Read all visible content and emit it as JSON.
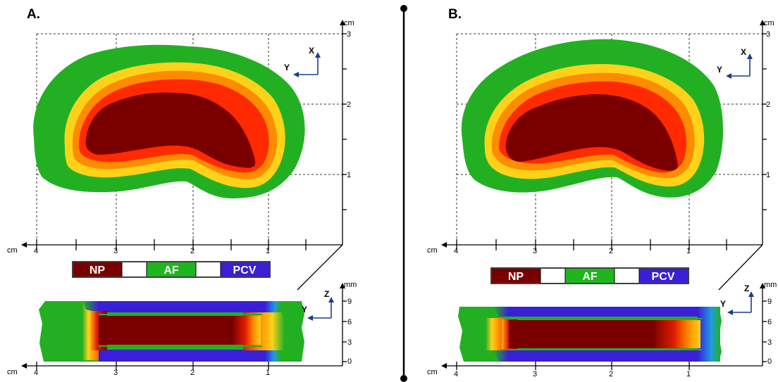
{
  "panels": [
    {
      "letter": "A.",
      "top_ticks_x": [
        "4",
        "3",
        "2",
        "1"
      ],
      "top_ticks_y": [
        "3",
        "2",
        "1"
      ],
      "bottom_ticks_x": [
        "4",
        "3",
        "2",
        "1"
      ],
      "bottom_ticks_y": [
        "9",
        "6",
        "3",
        "0"
      ],
      "unit_cm_axis": "cm",
      "unit_cm_vertical": "cm",
      "unit_mm": "mm",
      "top_axes": {
        "horizontal": "Y",
        "vertical": "X"
      },
      "bottom_axes": {
        "horizontal": "Y",
        "vertical": "Z"
      }
    },
    {
      "letter": "B.",
      "top_ticks_x": [
        "4",
        "3",
        "2",
        "1"
      ],
      "top_ticks_y": [
        "3",
        "2",
        "1"
      ],
      "bottom_ticks_x": [
        "4",
        "3",
        "2",
        "1"
      ],
      "bottom_ticks_y": [
        "9",
        "6",
        "3",
        "0"
      ],
      "unit_cm_axis": "cm",
      "unit_cm_vertical": "cm",
      "unit_mm": "mm",
      "top_axes": {
        "horizontal": "Y",
        "vertical": "X"
      },
      "bottom_axes": {
        "horizontal": "Y",
        "vertical": "Z"
      }
    }
  ],
  "legend": [
    {
      "label": "NP",
      "color": "#7a0000"
    },
    {
      "label": "",
      "color": "#ffffff"
    },
    {
      "label": "AF",
      "color": "#1fb51f"
    },
    {
      "label": "",
      "color": "#ffffff"
    },
    {
      "label": "PCV",
      "color": "#3a1fd8"
    }
  ],
  "colors": {
    "np": "#7a0000",
    "af": "#22b022",
    "pcv": "#3a1fd8",
    "transition": [
      "#ff2a00",
      "#ff8c00",
      "#ffd21a"
    ]
  }
}
